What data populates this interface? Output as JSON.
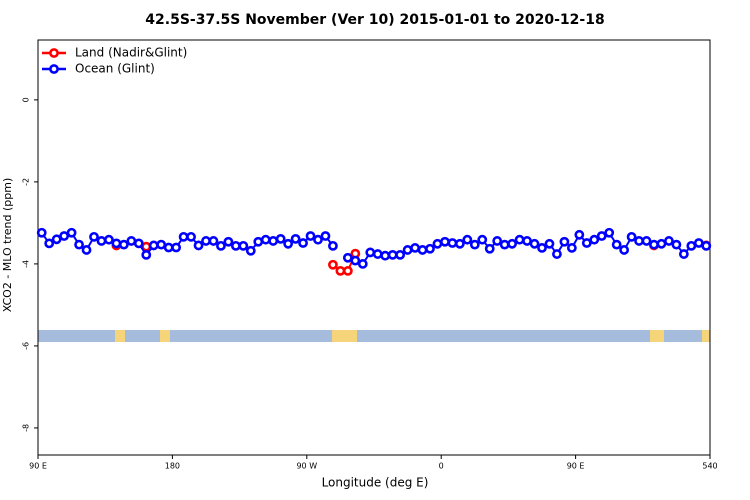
{
  "chart_data": {
    "type": "line",
    "title": "42.5S-37.5S November (Ver 10)   2015-01-01 to 2020-12-18",
    "x_label": "Longitude (deg E)",
    "y_label": "XCO2 - MLO trend (ppm)",
    "legend": "top-left",
    "xlim": [
      90,
      540
    ],
    "xticks": [
      {
        "value": 90,
        "label": "90 E"
      },
      180,
      {
        "value": 270,
        "label": "90 W"
      },
      {
        "value": 360,
        "label": "0"
      },
      {
        "value": 450,
        "label": "90 E"
      },
      540
    ],
    "ylim": [
      -8.66,
      1.46
    ],
    "yticks": [
      0,
      -2,
      -4,
      -6,
      -8
    ],
    "x": [
      92.5,
      97.5,
      102.5,
      107.5,
      112.5,
      117.5,
      122.5,
      127.5,
      132.5,
      137.5,
      142.5,
      147.5,
      152.5,
      157.5,
      162.5,
      167.5,
      172.5,
      177.5,
      182.5,
      187.5,
      192.5,
      197.5,
      202.5,
      207.5,
      212.5,
      217.5,
      222.5,
      227.5,
      232.5,
      237.5,
      242.5,
      247.5,
      252.5,
      257.5,
      262.5,
      267.5,
      272.5,
      277.5,
      282.5,
      287.5,
      292.5,
      297.5,
      302.5,
      307.5,
      312.5,
      317.5,
      322.5,
      327.5,
      332.5,
      337.5,
      342.5,
      347.5,
      352.5,
      357.5,
      362.5,
      367.5,
      372.5,
      377.5,
      382.5,
      387.5,
      392.5,
      397.5,
      402.5,
      407.5,
      412.5,
      417.5,
      422.5,
      427.5,
      432.5,
      437.5,
      442.5,
      447.5,
      452.5,
      457.5,
      462.5,
      467.5,
      472.5,
      477.5,
      482.5,
      487.5,
      492.5,
      497.5,
      502.5,
      507.5,
      512.5,
      517.5,
      522.5,
      527.5,
      532.5,
      537.5
    ],
    "series": [
      {
        "name": "Land (Nadir&Glint)",
        "color": "#ff0000",
        "values": [
          null,
          null,
          null,
          null,
          null,
          null,
          null,
          null,
          null,
          null,
          -3.55,
          null,
          null,
          null,
          -3.58,
          null,
          null,
          null,
          null,
          null,
          null,
          null,
          null,
          null,
          null,
          null,
          null,
          null,
          null,
          null,
          null,
          null,
          null,
          null,
          null,
          null,
          null,
          null,
          null,
          -4.02,
          -4.17,
          -4.17,
          -3.75,
          null,
          null,
          null,
          null,
          null,
          null,
          null,
          null,
          null,
          null,
          null,
          null,
          null,
          null,
          null,
          null,
          null,
          null,
          null,
          null,
          null,
          null,
          null,
          null,
          null,
          null,
          null,
          null,
          null,
          null,
          null,
          null,
          null,
          null,
          null,
          null,
          null,
          null,
          null,
          -3.55,
          null,
          null,
          null,
          null,
          null,
          null,
          -3.55
        ]
      },
      {
        "name": "Ocean (Glint)",
        "color": "#0000ff",
        "values": [
          -3.24,
          -3.5,
          -3.4,
          -3.32,
          -3.24,
          -3.53,
          -3.66,
          -3.34,
          -3.44,
          -3.41,
          -3.5,
          -3.53,
          -3.44,
          -3.5,
          -3.78,
          -3.55,
          -3.53,
          -3.6,
          -3.6,
          -3.34,
          -3.34,
          -3.55,
          -3.44,
          -3.44,
          -3.56,
          -3.46,
          -3.56,
          -3.56,
          -3.68,
          -3.46,
          -3.41,
          -3.44,
          -3.39,
          -3.51,
          -3.39,
          -3.49,
          -3.32,
          -3.41,
          -3.32,
          -3.56,
          null,
          -3.85,
          -3.92,
          -4.0,
          -3.72,
          -3.76,
          -3.8,
          -3.78,
          -3.78,
          -3.66,
          -3.61,
          -3.66,
          -3.63,
          -3.51,
          -3.46,
          -3.49,
          -3.51,
          -3.41,
          -3.53,
          -3.41,
          -3.63,
          -3.44,
          -3.53,
          -3.51,
          -3.41,
          -3.44,
          -3.51,
          -3.61,
          -3.51,
          -3.76,
          -3.46,
          -3.61,
          -3.29,
          -3.49,
          -3.41,
          -3.32,
          -3.24,
          -3.53,
          -3.66,
          -3.34,
          -3.44,
          -3.44,
          -3.53,
          -3.51,
          -3.44,
          -3.53,
          -3.76,
          -3.56,
          -3.49,
          -3.56
        ]
      }
    ]
  }
}
